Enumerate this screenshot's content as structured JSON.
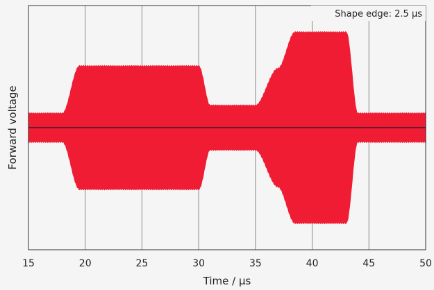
{
  "chart_data": {
    "type": "area",
    "xlabel": "Time / µs",
    "ylabel": "Forward voltage",
    "xlim": [
      15,
      50
    ],
    "ylim": [
      -1.55,
      1.55
    ],
    "xticks": [
      "15",
      "20",
      "25",
      "30",
      "35",
      "40",
      "45",
      "50"
    ],
    "grid": "vertical",
    "annotation": "Shape edge: 2.5 µs",
    "colors": {
      "envelope": "#f01c34",
      "carrier": "#3a1a2a",
      "grid": "#888888",
      "background": "#f5f5f5"
    },
    "envelope": {
      "x": [
        15,
        18,
        19.5,
        30,
        31,
        35,
        37,
        38.5,
        43,
        44,
        50
      ],
      "upper": [
        0.18,
        0.18,
        0.78,
        0.78,
        0.28,
        0.28,
        0.75,
        1.21,
        1.21,
        0.18,
        0.18
      ]
    },
    "carrier_level": 0
  }
}
